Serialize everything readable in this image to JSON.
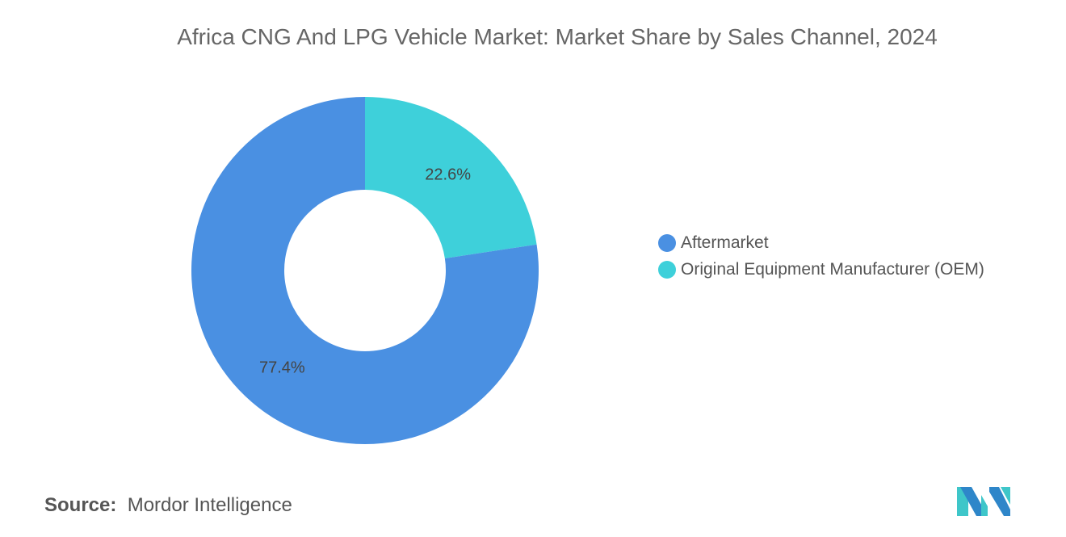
{
  "chart_data": {
    "type": "pie",
    "variant": "donut",
    "title": "Africa CNG And LPG Vehicle Market: Market Share by Sales Channel, 2024",
    "series": [
      {
        "name": "Aftermarket",
        "value": 77.4,
        "label": "77.4%",
        "color": "#4a90e2"
      },
      {
        "name": "Original Equipment Manufacturer (OEM)",
        "value": 22.6,
        "label": "22.6%",
        "color": "#3ed0da"
      }
    ],
    "legend_position": "right"
  },
  "source": {
    "label": "Source:",
    "value": "Mordor Intelligence"
  },
  "logo": {
    "text": "Mordor Intelligence",
    "colors": [
      "#2e86c9",
      "#3ec6c9"
    ]
  }
}
